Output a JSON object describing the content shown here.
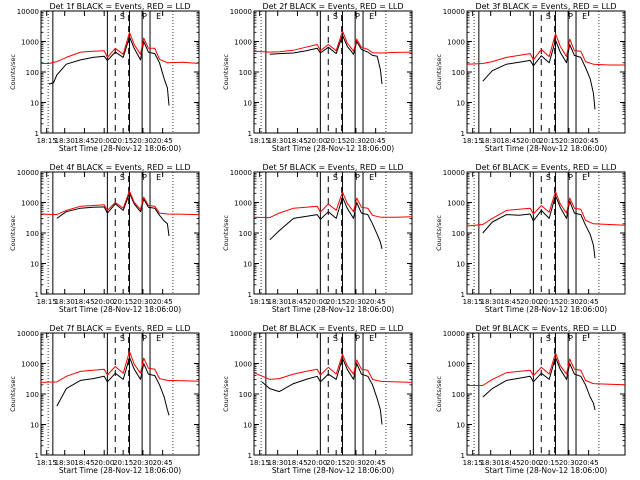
{
  "figure": {
    "x_ticks": [
      "18:15",
      "18:30",
      "18:45",
      "20:00",
      "20:15",
      "20:30",
      "20:45"
    ],
    "y_ticks": [
      "1",
      "10",
      "100",
      "1000",
      "10000"
    ],
    "xlabel": "Start Time (28-Nov-12 18:06:00)",
    "ylabel": "Counts/sec",
    "marker_labels": [
      "S",
      "P",
      "E"
    ],
    "colors": {
      "black_series": "#000000",
      "red_series": "#ff0000",
      "axes": "#000000",
      "background": "#ffffff"
    }
  },
  "chart_data": [
    {
      "type": "line",
      "title": "Det 1f BLACK = Events, RED = LLD",
      "xlabel": "Start Time (28-Nov-12 18:06:00)",
      "ylabel": "Counts/sec",
      "ylim": [
        1,
        10000
      ],
      "y_scale": "log",
      "x_ticks": [
        "18:15",
        "18:30",
        "18:45",
        "20:00",
        "20:15",
        "20:30",
        "20:45"
      ],
      "series": [
        {
          "name": "Events",
          "color": "#000000",
          "x": [
            0.05,
            0.08,
            0.1,
            0.16,
            0.25,
            0.33,
            0.4,
            0.42,
            0.47,
            0.52,
            0.56,
            0.59,
            0.63,
            0.65,
            0.68,
            0.72,
            0.75,
            0.78,
            0.8,
            0.81
          ],
          "y": [
            40,
            45,
            80,
            180,
            250,
            300,
            330,
            240,
            450,
            300,
            1400,
            600,
            250,
            1000,
            450,
            400,
            200,
            60,
            30,
            8
          ]
        },
        {
          "name": "LLD",
          "color": "#ff0000",
          "x": [
            0.0,
            0.05,
            0.1,
            0.16,
            0.25,
            0.33,
            0.4,
            0.42,
            0.47,
            0.52,
            0.56,
            0.59,
            0.63,
            0.65,
            0.68,
            0.72,
            0.75,
            0.8,
            0.9,
            1.0
          ],
          "y": [
            190,
            190,
            220,
            300,
            450,
            480,
            500,
            300,
            600,
            380,
            2000,
            800,
            380,
            1300,
            600,
            600,
            260,
            200,
            210,
            190
          ]
        }
      ]
    },
    {
      "type": "line",
      "title": "Det 2f BLACK = Events, RED = LLD",
      "xlabel": "Start Time (28-Nov-12 18:06:00)",
      "ylabel": "Counts/sec",
      "ylim": [
        1,
        10000
      ],
      "y_scale": "log",
      "x_ticks": [
        "18:15",
        "18:30",
        "18:45",
        "20:00",
        "20:15",
        "20:30",
        "20:45"
      ],
      "series": [
        {
          "name": "Events",
          "color": "#000000",
          "x": [
            0.1,
            0.16,
            0.25,
            0.33,
            0.4,
            0.42,
            0.47,
            0.52,
            0.56,
            0.59,
            0.63,
            0.65,
            0.68,
            0.72,
            0.75,
            0.78,
            0.8,
            0.81
          ],
          "y": [
            380,
            400,
            420,
            500,
            600,
            420,
            650,
            400,
            1600,
            700,
            380,
            1000,
            550,
            450,
            350,
            330,
            120,
            40
          ]
        },
        {
          "name": "LLD",
          "color": "#ff0000",
          "x": [
            0.0,
            0.1,
            0.16,
            0.25,
            0.33,
            0.4,
            0.42,
            0.47,
            0.52,
            0.56,
            0.59,
            0.63,
            0.65,
            0.68,
            0.72,
            0.75,
            0.8,
            0.9,
            1.0
          ],
          "y": [
            480,
            450,
            460,
            520,
            650,
            800,
            500,
            800,
            500,
            2200,
            900,
            480,
            1200,
            650,
            550,
            430,
            420,
            440,
            450
          ]
        }
      ]
    },
    {
      "type": "line",
      "title": "Det 3f BLACK = Events, RED = LLD",
      "xlabel": "Start Time (28-Nov-12 18:06:00)",
      "ylabel": "Counts/sec",
      "ylim": [
        1,
        10000
      ],
      "y_scale": "log",
      "x_ticks": [
        "18:15",
        "18:30",
        "18:45",
        "20:00",
        "20:15",
        "20:30",
        "20:45"
      ],
      "series": [
        {
          "name": "Events",
          "color": "#000000",
          "x": [
            0.1,
            0.16,
            0.25,
            0.33,
            0.4,
            0.42,
            0.47,
            0.52,
            0.56,
            0.59,
            0.63,
            0.65,
            0.68,
            0.72,
            0.75,
            0.78,
            0.8,
            0.81
          ],
          "y": [
            50,
            110,
            180,
            210,
            240,
            160,
            340,
            200,
            1100,
            450,
            200,
            800,
            350,
            300,
            140,
            60,
            20,
            6
          ]
        },
        {
          "name": "LLD",
          "color": "#ff0000",
          "x": [
            0.0,
            0.1,
            0.16,
            0.25,
            0.33,
            0.4,
            0.42,
            0.47,
            0.52,
            0.56,
            0.59,
            0.63,
            0.65,
            0.68,
            0.72,
            0.75,
            0.8,
            0.9,
            1.0
          ],
          "y": [
            180,
            190,
            220,
            300,
            350,
            400,
            250,
            550,
            320,
            1800,
            700,
            320,
            1200,
            500,
            480,
            220,
            180,
            170,
            170
          ]
        }
      ]
    },
    {
      "type": "line",
      "title": "Det 4f BLACK = Events, RED = LLD",
      "xlabel": "Start Time (28-Nov-12 18:06:00)",
      "ylabel": "Counts/sec",
      "ylim": [
        1,
        10000
      ],
      "y_scale": "log",
      "x_ticks": [
        "18:15",
        "18:30",
        "18:45",
        "20:00",
        "20:15",
        "20:30",
        "20:45"
      ],
      "series": [
        {
          "name": "Events",
          "color": "#000000",
          "x": [
            0.1,
            0.16,
            0.25,
            0.33,
            0.4,
            0.42,
            0.47,
            0.52,
            0.56,
            0.59,
            0.63,
            0.65,
            0.68,
            0.72,
            0.75,
            0.78,
            0.8,
            0.81
          ],
          "y": [
            300,
            500,
            650,
            700,
            720,
            450,
            900,
            550,
            2000,
            900,
            500,
            1300,
            700,
            650,
            380,
            250,
            200,
            80
          ]
        },
        {
          "name": "LLD",
          "color": "#ff0000",
          "x": [
            0.0,
            0.1,
            0.16,
            0.25,
            0.33,
            0.4,
            0.42,
            0.47,
            0.52,
            0.56,
            0.59,
            0.63,
            0.65,
            0.68,
            0.72,
            0.75,
            0.8,
            0.9,
            1.0
          ],
          "y": [
            420,
            400,
            550,
            750,
            800,
            850,
            550,
            1000,
            650,
            2400,
            1000,
            600,
            1500,
            800,
            750,
            450,
            420,
            410,
            400
          ]
        }
      ]
    },
    {
      "type": "line",
      "title": "Det 5f BLACK = Events, RED = LLD",
      "xlabel": "Start Time (28-Nov-12 18:06:00)",
      "ylabel": "Counts/sec",
      "ylim": [
        1,
        10000
      ],
      "y_scale": "log",
      "x_ticks": [
        "18:15",
        "18:30",
        "18:45",
        "20:00",
        "20:15",
        "20:30",
        "20:45"
      ],
      "series": [
        {
          "name": "Events",
          "color": "#000000",
          "x": [
            0.1,
            0.16,
            0.25,
            0.33,
            0.4,
            0.42,
            0.47,
            0.52,
            0.56,
            0.59,
            0.63,
            0.65,
            0.68,
            0.72,
            0.75,
            0.78,
            0.8,
            0.81
          ],
          "y": [
            60,
            120,
            300,
            350,
            400,
            280,
            500,
            300,
            1500,
            650,
            300,
            1000,
            450,
            400,
            200,
            90,
            50,
            30
          ]
        },
        {
          "name": "LLD",
          "color": "#ff0000",
          "x": [
            0.0,
            0.1,
            0.16,
            0.25,
            0.33,
            0.4,
            0.42,
            0.47,
            0.52,
            0.56,
            0.59,
            0.63,
            0.65,
            0.68,
            0.72,
            0.75,
            0.8,
            0.9,
            1.0
          ],
          "y": [
            330,
            320,
            450,
            650,
            700,
            750,
            480,
            900,
            550,
            2200,
            950,
            500,
            1400,
            700,
            650,
            380,
            330,
            330,
            340
          ]
        }
      ]
    },
    {
      "type": "line",
      "title": "Det 6f BLACK = Events, RED = LLD",
      "xlabel": "Start Time (28-Nov-12 18:06:00)",
      "ylabel": "Counts/sec",
      "ylim": [
        1,
        10000
      ],
      "y_scale": "log",
      "x_ticks": [
        "18:15",
        "18:30",
        "18:45",
        "20:00",
        "20:15",
        "20:30",
        "20:45"
      ],
      "series": [
        {
          "name": "Events",
          "color": "#000000",
          "x": [
            0.1,
            0.16,
            0.25,
            0.33,
            0.4,
            0.42,
            0.47,
            0.52,
            0.56,
            0.59,
            0.63,
            0.65,
            0.68,
            0.72,
            0.75,
            0.78,
            0.8,
            0.81
          ],
          "y": [
            100,
            230,
            400,
            380,
            420,
            250,
            550,
            300,
            1700,
            700,
            300,
            1100,
            450,
            400,
            180,
            90,
            40,
            15
          ]
        },
        {
          "name": "LLD",
          "color": "#ff0000",
          "x": [
            0.0,
            0.1,
            0.16,
            0.25,
            0.33,
            0.4,
            0.42,
            0.47,
            0.52,
            0.56,
            0.59,
            0.63,
            0.65,
            0.68,
            0.72,
            0.75,
            0.8,
            0.9,
            1.0
          ],
          "y": [
            170,
            190,
            300,
            550,
            600,
            650,
            420,
            800,
            480,
            2300,
            900,
            450,
            1400,
            650,
            600,
            260,
            200,
            190,
            180
          ]
        }
      ]
    },
    {
      "type": "line",
      "title": "Det 7f BLACK = Events, RED = LLD",
      "xlabel": "Start Time (28-Nov-12 18:06:00)",
      "ylabel": "Counts/sec",
      "ylim": [
        1,
        10000
      ],
      "y_scale": "log",
      "x_ticks": [
        "18:15",
        "18:30",
        "18:45",
        "20:00",
        "20:15",
        "20:30",
        "20:45"
      ],
      "series": [
        {
          "name": "Events",
          "color": "#000000",
          "x": [
            0.1,
            0.16,
            0.25,
            0.33,
            0.4,
            0.42,
            0.47,
            0.52,
            0.56,
            0.59,
            0.63,
            0.65,
            0.68,
            0.72,
            0.75,
            0.78,
            0.8,
            0.81
          ],
          "y": [
            40,
            150,
            280,
            320,
            380,
            250,
            480,
            300,
            1600,
            650,
            300,
            1000,
            450,
            400,
            200,
            80,
            30,
            20
          ]
        },
        {
          "name": "LLD",
          "color": "#ff0000",
          "x": [
            0.0,
            0.1,
            0.16,
            0.25,
            0.33,
            0.4,
            0.42,
            0.47,
            0.52,
            0.56,
            0.59,
            0.63,
            0.65,
            0.68,
            0.72,
            0.75,
            0.8,
            0.9,
            1.0
          ],
          "y": [
            240,
            250,
            380,
            550,
            600,
            650,
            420,
            800,
            480,
            2500,
            950,
            480,
            1500,
            700,
            650,
            320,
            280,
            270,
            260
          ]
        }
      ]
    },
    {
      "type": "line",
      "title": "Det 8f BLACK = Events, RED = LLD",
      "xlabel": "Start Time (28-Nov-12 18:06:00)",
      "ylabel": "Counts/sec",
      "ylim": [
        1,
        10000
      ],
      "y_scale": "log",
      "x_ticks": [
        "18:15",
        "18:30",
        "18:45",
        "20:00",
        "20:15",
        "20:30",
        "20:45"
      ],
      "series": [
        {
          "name": "Events",
          "color": "#000000",
          "x": [
            0.05,
            0.1,
            0.16,
            0.25,
            0.33,
            0.4,
            0.42,
            0.47,
            0.52,
            0.56,
            0.59,
            0.63,
            0.65,
            0.68,
            0.72,
            0.75,
            0.78,
            0.8,
            0.81
          ],
          "y": [
            250,
            150,
            120,
            220,
            300,
            380,
            250,
            450,
            300,
            1500,
            650,
            300,
            1000,
            450,
            380,
            200,
            70,
            30,
            10
          ]
        },
        {
          "name": "LLD",
          "color": "#ff0000",
          "x": [
            0.0,
            0.1,
            0.16,
            0.25,
            0.33,
            0.4,
            0.42,
            0.47,
            0.52,
            0.56,
            0.59,
            0.63,
            0.65,
            0.68,
            0.72,
            0.75,
            0.8,
            0.9,
            1.0
          ],
          "y": [
            500,
            300,
            320,
            450,
            550,
            650,
            420,
            750,
            450,
            2000,
            850,
            450,
            1300,
            650,
            600,
            300,
            260,
            250,
            240
          ]
        }
      ]
    },
    {
      "type": "line",
      "title": "Det 9f BLACK = Events, RED = LLD",
      "xlabel": "Start Time (28-Nov-12 18:06:00)",
      "ylabel": "Counts/sec",
      "ylim": [
        1,
        10000
      ],
      "y_scale": "log",
      "x_ticks": [
        "18:15",
        "18:30",
        "18:45",
        "20:00",
        "20:15",
        "20:30",
        "20:45"
      ],
      "series": [
        {
          "name": "Events",
          "color": "#000000",
          "x": [
            0.1,
            0.16,
            0.25,
            0.33,
            0.4,
            0.42,
            0.47,
            0.52,
            0.56,
            0.59,
            0.63,
            0.65,
            0.68,
            0.72,
            0.75,
            0.78,
            0.8,
            0.81
          ],
          "y": [
            80,
            150,
            280,
            330,
            380,
            250,
            480,
            300,
            1600,
            650,
            300,
            1000,
            450,
            380,
            200,
            80,
            50,
            30
          ]
        },
        {
          "name": "LLD",
          "color": "#ff0000",
          "x": [
            0.0,
            0.1,
            0.16,
            0.25,
            0.33,
            0.4,
            0.42,
            0.47,
            0.52,
            0.56,
            0.59,
            0.63,
            0.65,
            0.68,
            0.72,
            0.75,
            0.8,
            0.9,
            1.0
          ],
          "y": [
            190,
            190,
            300,
            500,
            550,
            600,
            400,
            750,
            450,
            2200,
            850,
            450,
            1400,
            650,
            600,
            280,
            220,
            210,
            200
          ]
        }
      ]
    }
  ]
}
